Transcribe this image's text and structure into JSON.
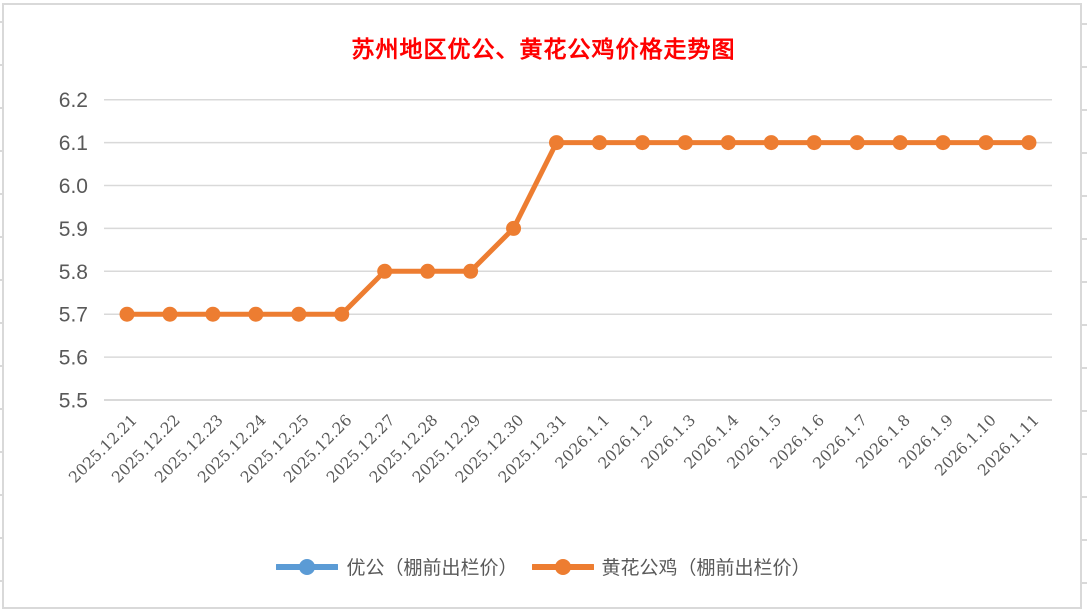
{
  "frame": {
    "background": "#FFFFFF",
    "border_color": "#D9D9D9"
  },
  "chart_data": {
    "type": "line",
    "title": "苏州地区优公、黄花公鸡价格走势图",
    "title_color": "#FF0000",
    "categories": [
      "2025.12.21",
      "2025.12.22",
      "2025.12.23",
      "2025.12.24",
      "2025.12.25",
      "2025.12.26",
      "2025.12.27",
      "2025.12.28",
      "2025.12.29",
      "2025.12.30",
      "2025.12.31",
      "2026.1.1",
      "2026.1.2",
      "2026.1.3",
      "2026.1.4",
      "2026.1.5",
      "2026.1.6",
      "2026.1.7",
      "2026.1.8",
      "2026.1.9",
      "2026.1.10",
      "2026.1.11"
    ],
    "series": [
      {
        "name": "优公（棚前出栏价）",
        "color": "#5B9BD5",
        "marker": "circle",
        "values": []
      },
      {
        "name": "黄花公鸡（棚前出栏价）",
        "color": "#ED7D31",
        "marker": "circle",
        "values": [
          5.7,
          5.7,
          5.7,
          5.7,
          5.7,
          5.7,
          5.8,
          5.8,
          5.8,
          5.9,
          6.1,
          6.1,
          6.1,
          6.1,
          6.1,
          6.1,
          6.1,
          6.1,
          6.1,
          6.1,
          6.1,
          6.1
        ]
      }
    ],
    "xlabel": "",
    "ylabel": "",
    "ylim": [
      5.5,
      6.2
    ],
    "ytick_step": 0.1,
    "ytick_labels": [
      "6.2",
      "6.1",
      "6.0",
      "5.9",
      "5.8",
      "5.7",
      "5.6",
      "5.5"
    ],
    "x_tick_rotation_deg": 45,
    "grid": true,
    "gridline_color": "#D9D9D9",
    "axis_text_color": "#595959",
    "legend_position": "bottom"
  }
}
